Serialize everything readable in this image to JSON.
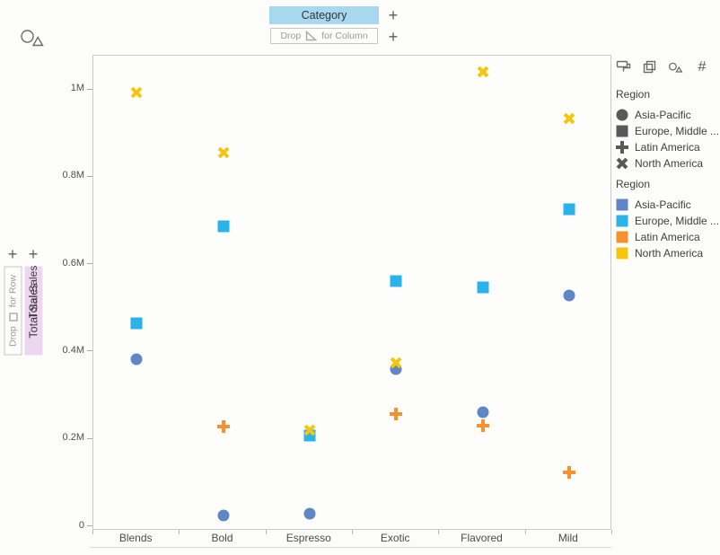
{
  "shelves": {
    "column_pill": "Category",
    "column_drop_prefix": "Drop",
    "column_drop_suffix": "for Column",
    "row_drop_prefix": "Drop",
    "row_drop_suffix": "for Row",
    "row_pill": "Total Sales",
    "add_symbol": "+"
  },
  "panel": {
    "icons": [
      {
        "name": "style-roller-icon"
      },
      {
        "name": "duplicate-icon"
      },
      {
        "name": "marker-shapes-icon"
      },
      {
        "name": "hash-icon",
        "glyph": "#"
      }
    ]
  },
  "chart_data": {
    "type": "scatter",
    "title": "",
    "xlabel": "",
    "ylabel": "Total Sales",
    "categories": [
      "Blends",
      "Bold",
      "Espresso",
      "Exotic",
      "Flavored",
      "Mild"
    ],
    "y_ticks": [
      {
        "label": "0",
        "value": 0
      },
      {
        "label": "0.2M",
        "value": 200000
      },
      {
        "label": "0.4M",
        "value": 400000
      },
      {
        "label": "0.6M",
        "value": 600000
      },
      {
        "label": "0.8M",
        "value": 800000
      },
      {
        "label": "1M",
        "value": 1000000
      }
    ],
    "ylim": [
      0,
      1090000
    ],
    "grid": false,
    "legend_position": "right",
    "series": [
      {
        "name": "Asia-Pacific",
        "shape": "circle",
        "color": "#5f86c5",
        "values": [
          382000,
          25000,
          29000,
          359000,
          261000,
          529000
        ]
      },
      {
        "name": "Europe, Middle ...",
        "shape": "square",
        "color": "#29b3e8",
        "values": [
          465000,
          687000,
          207000,
          561000,
          546000,
          726000
        ]
      },
      {
        "name": "Latin America",
        "shape": "plus",
        "color": "#f7902e",
        "values": [
          null,
          228000,
          null,
          258000,
          230000,
          124000
        ]
      },
      {
        "name": "North America",
        "shape": "x",
        "color": "#f5c60d",
        "values": [
          992000,
          855000,
          220000,
          375000,
          1041000,
          934000
        ]
      }
    ]
  },
  "legends": [
    {
      "title": "Region",
      "type": "shape",
      "shape_color": "#595959",
      "items": [
        {
          "label": "Asia-Pacific",
          "shape": "circle"
        },
        {
          "label": "Europe, Middle ...",
          "shape": "square"
        },
        {
          "label": "Latin America",
          "shape": "plus"
        },
        {
          "label": "North America",
          "shape": "x"
        }
      ]
    },
    {
      "title": "Region",
      "type": "color",
      "items": [
        {
          "label": "Asia-Pacific",
          "color": "#5f86c5"
        },
        {
          "label": "Europe, Middle ...",
          "color": "#29b3e8"
        },
        {
          "label": "Latin America",
          "color": "#f7902e"
        },
        {
          "label": "North America",
          "color": "#f5c60d"
        }
      ]
    }
  ]
}
